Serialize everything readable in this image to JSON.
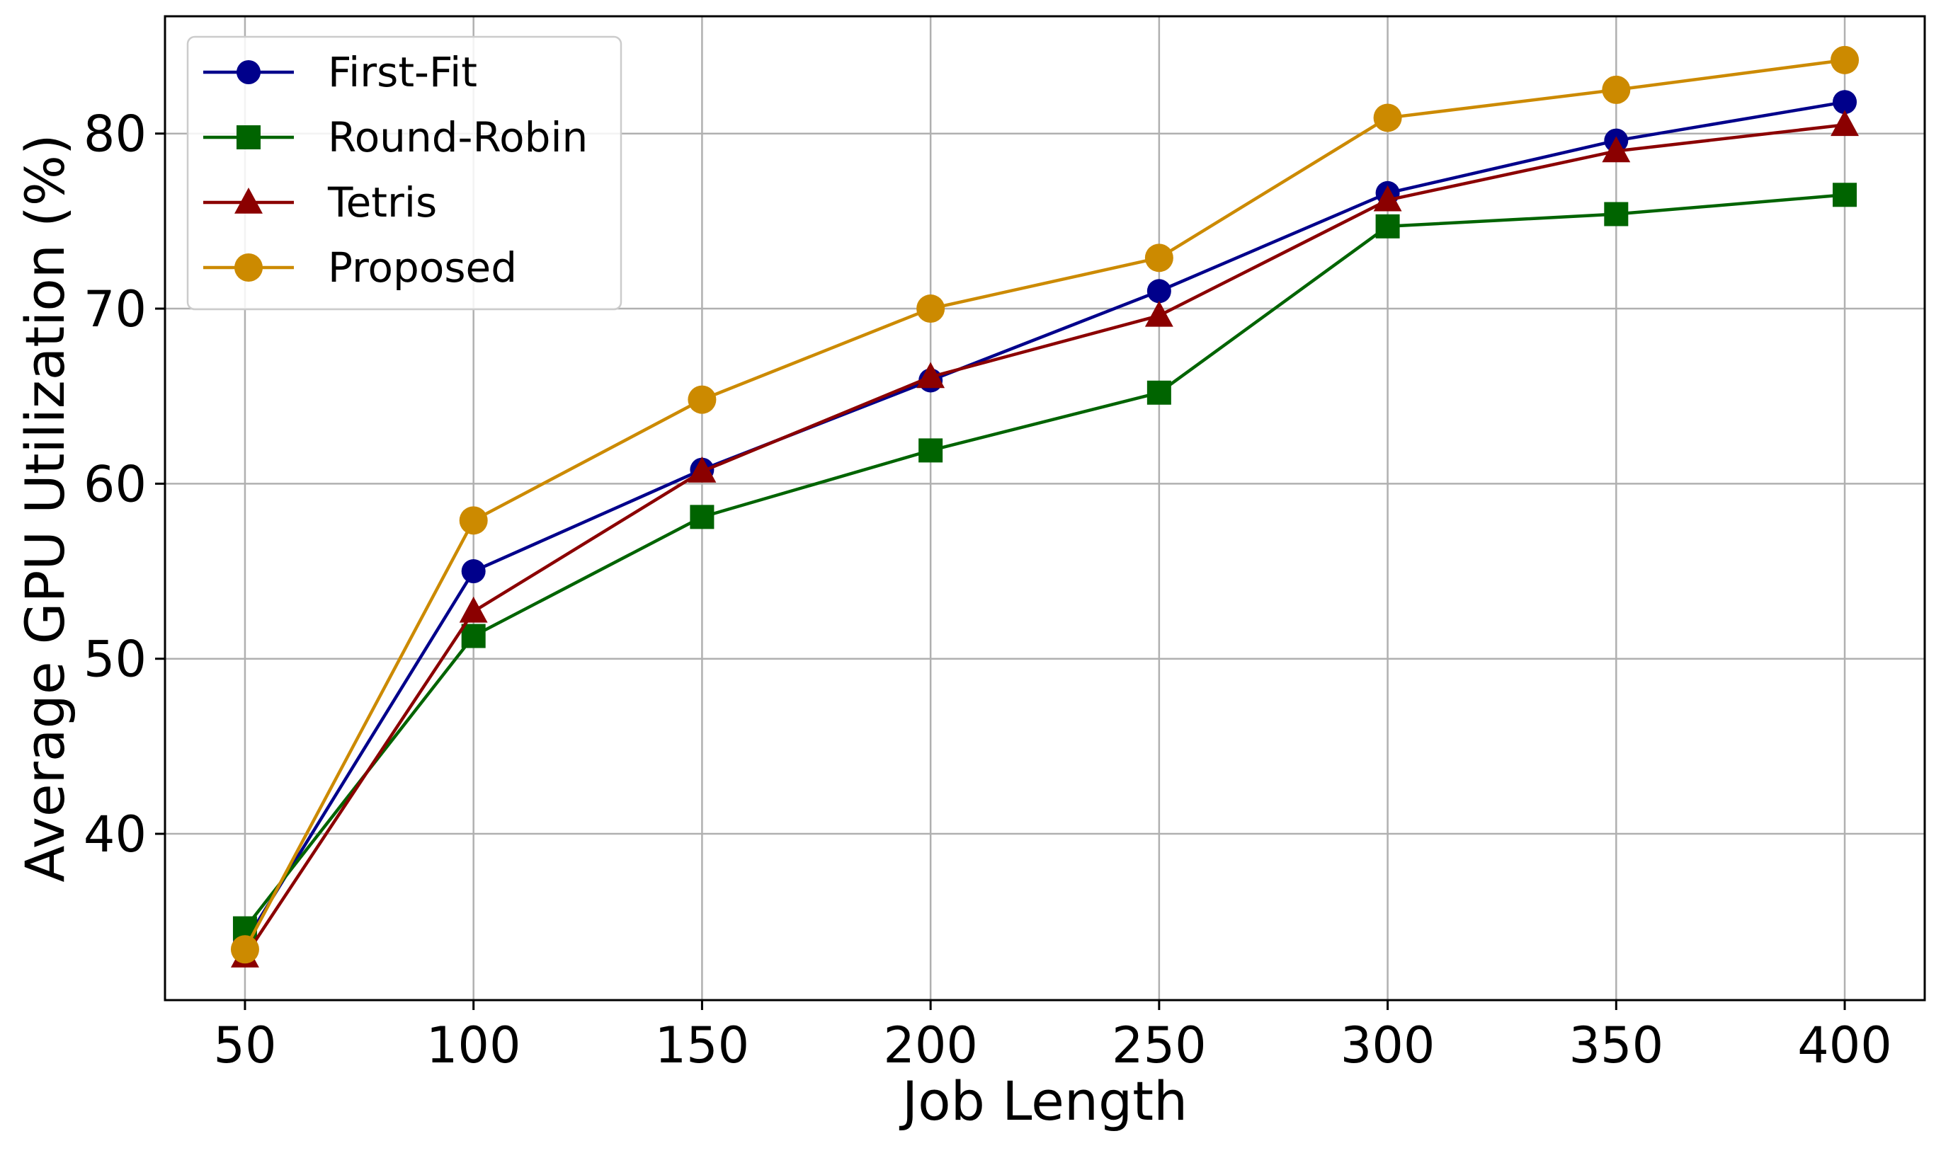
{
  "chart_data": {
    "type": "line",
    "title": "",
    "xlabel": "Job Length",
    "ylabel": "Average GPU Utilization (%)",
    "x": [
      50,
      100,
      150,
      200,
      250,
      300,
      350,
      400
    ],
    "xlim": [
      32.5,
      417.5
    ],
    "ylim": [
      30.5,
      86.7
    ],
    "xticks": [
      "50",
      "100",
      "150",
      "200",
      "250",
      "300",
      "350",
      "400"
    ],
    "yticks": [
      "40",
      "50",
      "60",
      "70",
      "80"
    ],
    "ytick_values": [
      40,
      50,
      60,
      70,
      80
    ],
    "grid": true,
    "legend_position": "top-left",
    "series": [
      {
        "name": "First-Fit",
        "color": "#00008b",
        "marker": "circle",
        "values": [
          33.8,
          55.0,
          60.8,
          65.9,
          71.0,
          76.6,
          79.6,
          81.8
        ]
      },
      {
        "name": "Round-Robin",
        "color": "#006400",
        "marker": "square",
        "values": [
          34.6,
          51.3,
          58.1,
          61.9,
          65.2,
          74.7,
          75.4,
          76.5
        ]
      },
      {
        "name": "Tetris",
        "color": "#8b0000",
        "marker": "triangle",
        "values": [
          33.0,
          52.7,
          60.7,
          66.1,
          69.6,
          76.2,
          79.0,
          80.5
        ]
      },
      {
        "name": "Proposed",
        "color": "#cc8a00",
        "marker": "circle",
        "values": [
          33.4,
          57.9,
          64.8,
          70.0,
          72.9,
          80.9,
          82.5,
          84.2
        ]
      }
    ]
  }
}
